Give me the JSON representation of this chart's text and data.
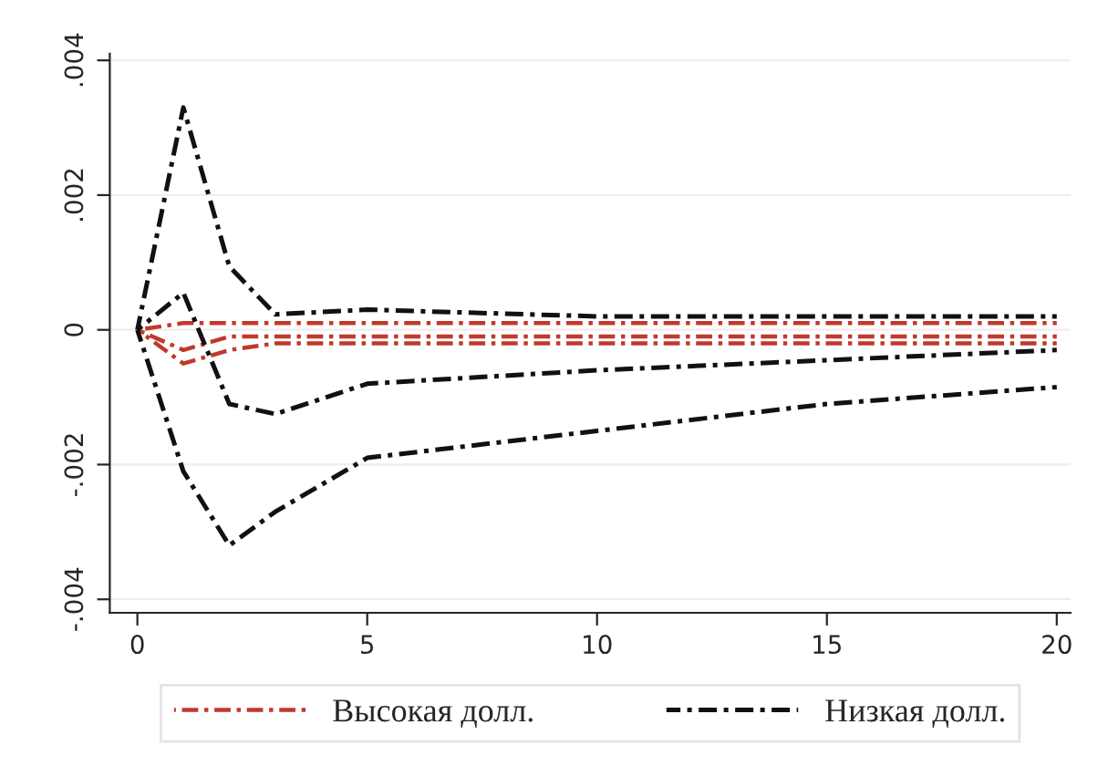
{
  "chart_data": {
    "type": "line",
    "x": [
      0,
      1,
      2,
      3,
      5,
      10,
      15,
      20
    ],
    "series": [
      {
        "name": "Высокая долл.",
        "color": "#c0392b",
        "values": [
          0,
          0.0001,
          0.0001,
          0.0001,
          0.0001,
          0.0001,
          0.0001,
          0.0001
        ]
      },
      {
        "color": "#c0392b",
        "values": [
          0,
          -0.0003,
          -0.0001,
          -0.0001,
          -0.0001,
          -0.0001,
          -0.0001,
          -0.0001
        ]
      },
      {
        "color": "#c0392b",
        "values": [
          0,
          -0.0005,
          -0.0003,
          -0.0002,
          -0.0002,
          -0.0002,
          -0.0002,
          -0.0002
        ]
      },
      {
        "name": "Низкая долл.",
        "color": "#111111",
        "values": [
          0,
          0.0033,
          0.00094,
          0.00023,
          0.0003,
          0.0002,
          0.0002,
          0.0002
        ]
      },
      {
        "color": "#111111",
        "values": [
          0,
          0.00055,
          -0.0011,
          -0.00125,
          -0.0008,
          -0.0006,
          -0.00045,
          -0.0003
        ]
      },
      {
        "color": "#111111",
        "values": [
          0,
          -0.0021,
          -0.0032,
          -0.0027,
          -0.0019,
          -0.0015,
          -0.0011,
          -0.00085
        ]
      }
    ],
    "line_style": "dashdot",
    "xlim": [
      -0.6,
      20.3
    ],
    "xticks": [
      0,
      5,
      10,
      15,
      20
    ],
    "ylim": [
      -0.0042,
      0.0041
    ],
    "yticks": [
      {
        "value": -0.004,
        "label": "-.004"
      },
      {
        "value": -0.002,
        "label": "-.002"
      },
      {
        "value": 0,
        "label": "0"
      },
      {
        "value": 0.002,
        "label": ".002"
      },
      {
        "value": 0.004,
        "label": ".004"
      }
    ],
    "grid": "y",
    "legend": "bottom"
  }
}
